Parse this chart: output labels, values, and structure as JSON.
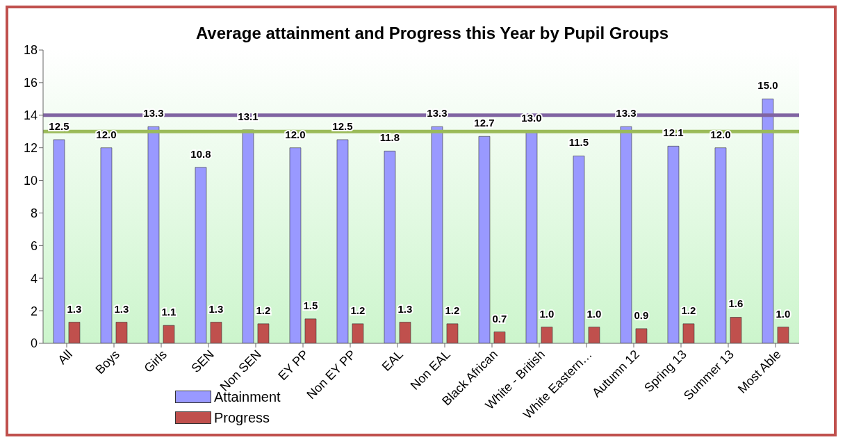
{
  "chart_data": {
    "type": "bar",
    "title": "Average attainment and Progress this Year by Pupil Groups",
    "categories": [
      "All",
      "Boys",
      "Girls",
      "SEN",
      "Non SEN",
      "EY PP",
      "Non EY PP",
      "EAL",
      "Non EAL",
      "Black African",
      "White - British",
      "White Eastern…",
      "Autumn 12",
      "Spring 13",
      "Summer 13",
      "Most Able"
    ],
    "series": [
      {
        "name": "Attainment",
        "color": "#9999ff",
        "values": [
          12.5,
          12.0,
          13.3,
          10.8,
          13.1,
          12.0,
          12.5,
          11.8,
          13.3,
          12.7,
          13.0,
          11.5,
          13.3,
          12.1,
          12.0,
          15.0
        ],
        "value_labels": [
          "12.5",
          "12.0",
          "13.3",
          "10.8",
          "13.1",
          "12.0",
          "12.5",
          "11.8",
          "13.3",
          "12.7",
          "13.0",
          "11.5",
          "13.3",
          "12.1",
          "12.0",
          "15.0"
        ]
      },
      {
        "name": "Progress",
        "color": "#c0504d",
        "values": [
          1.3,
          1.3,
          1.1,
          1.3,
          1.2,
          1.5,
          1.2,
          1.3,
          1.2,
          0.7,
          1.0,
          1.0,
          0.9,
          1.2,
          1.6,
          1.0
        ],
        "value_labels": [
          "1.3",
          "1.3",
          "1.1",
          "1.3",
          "1.2",
          "1.5",
          "1.2",
          "1.3",
          "1.2",
          "0.7",
          "1.0",
          "1.0",
          "0.9",
          "1.2",
          "1.6",
          "1.0"
        ]
      }
    ],
    "ylim": [
      0,
      18
    ],
    "yticks": [
      0,
      2,
      4,
      6,
      8,
      10,
      12,
      14,
      16,
      18
    ],
    "ref_lines": [
      {
        "axis": "y",
        "value": 14,
        "color": "#8064a2"
      },
      {
        "axis": "y",
        "value": 13,
        "color": "#9bbb59"
      }
    ],
    "legend": "bottom left",
    "grid": false
  }
}
